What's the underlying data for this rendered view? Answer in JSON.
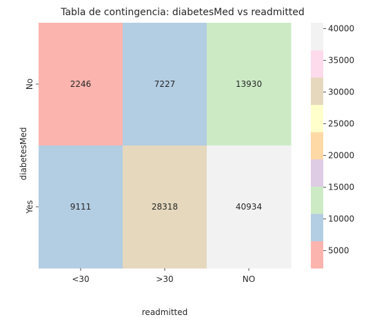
{
  "chart_data": {
    "type": "heatmap",
    "title": "Tabla de contingencia: diabetesMed vs readmitted",
    "xlabel": "readmitted",
    "ylabel": "diabetesMed",
    "x_categories": [
      "<30",
      ">30",
      "NO"
    ],
    "y_categories": [
      "No",
      "Yes"
    ],
    "values": [
      [
        2246,
        7227,
        13930
      ],
      [
        9111,
        28318,
        40934
      ]
    ],
    "colormap": "Pastel1",
    "colorbar": {
      "range": [
        2246,
        40934
      ],
      "ticks": [
        5000,
        10000,
        15000,
        20000,
        25000,
        30000,
        35000,
        40000
      ],
      "colors": [
        "#fbb4ae",
        "#b3cde3",
        "#ccebc5",
        "#decbe4",
        "#fed9a6",
        "#ffffcc",
        "#e5d8bd",
        "#fddaec",
        "#f2f2f2"
      ]
    }
  }
}
